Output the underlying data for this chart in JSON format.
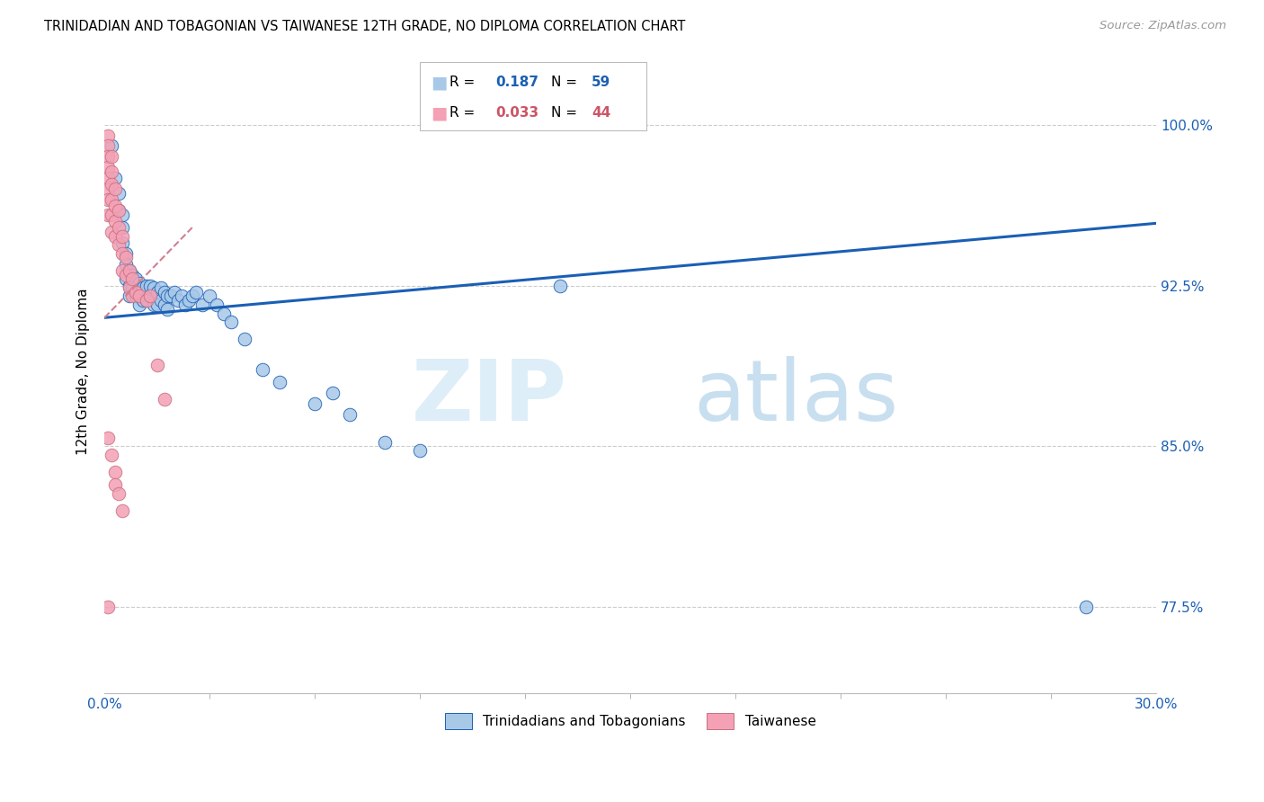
{
  "title": "TRINIDADIAN AND TOBAGONIAN VS TAIWANESE 12TH GRADE, NO DIPLOMA CORRELATION CHART",
  "source": "Source: ZipAtlas.com",
  "ylabel": "12th Grade, No Diploma",
  "ytick_labels": [
    "77.5%",
    "85.0%",
    "92.5%",
    "100.0%"
  ],
  "ytick_values": [
    0.775,
    0.85,
    0.925,
    1.0
  ],
  "xlim": [
    0.0,
    0.3
  ],
  "ylim": [
    0.735,
    1.035
  ],
  "color_blue": "#a8c8e8",
  "color_pink": "#f4a0b5",
  "trendline1_color": "#1a5fb4",
  "trendline2_color": "#d08090",
  "blue_points_x": [
    0.002,
    0.003,
    0.004,
    0.004,
    0.005,
    0.005,
    0.005,
    0.006,
    0.006,
    0.006,
    0.007,
    0.007,
    0.007,
    0.008,
    0.008,
    0.009,
    0.009,
    0.01,
    0.01,
    0.01,
    0.011,
    0.011,
    0.012,
    0.012,
    0.013,
    0.013,
    0.014,
    0.014,
    0.015,
    0.015,
    0.016,
    0.016,
    0.017,
    0.017,
    0.018,
    0.018,
    0.019,
    0.02,
    0.021,
    0.022,
    0.023,
    0.024,
    0.025,
    0.026,
    0.028,
    0.03,
    0.032,
    0.034,
    0.036,
    0.04,
    0.045,
    0.05,
    0.06,
    0.065,
    0.07,
    0.08,
    0.09,
    0.13,
    0.28
  ],
  "blue_points_y": [
    0.99,
    0.975,
    0.968,
    0.96,
    0.958,
    0.952,
    0.945,
    0.94,
    0.935,
    0.928,
    0.932,
    0.925,
    0.92,
    0.93,
    0.924,
    0.928,
    0.92,
    0.926,
    0.922,
    0.916,
    0.924,
    0.918,
    0.925,
    0.918,
    0.925,
    0.92,
    0.924,
    0.916,
    0.922,
    0.916,
    0.924,
    0.918,
    0.922,
    0.916,
    0.92,
    0.914,
    0.92,
    0.922,
    0.918,
    0.92,
    0.916,
    0.918,
    0.92,
    0.922,
    0.916,
    0.92,
    0.916,
    0.912,
    0.908,
    0.9,
    0.886,
    0.88,
    0.87,
    0.875,
    0.865,
    0.852,
    0.848,
    0.925,
    0.775
  ],
  "pink_points_x": [
    0.001,
    0.001,
    0.001,
    0.001,
    0.001,
    0.001,
    0.001,
    0.001,
    0.002,
    0.002,
    0.002,
    0.002,
    0.002,
    0.002,
    0.003,
    0.003,
    0.003,
    0.003,
    0.004,
    0.004,
    0.004,
    0.005,
    0.005,
    0.005,
    0.006,
    0.006,
    0.007,
    0.007,
    0.008,
    0.008,
    0.009,
    0.01,
    0.012,
    0.013,
    0.015,
    0.017,
    0.001,
    0.002,
    0.003,
    0.003,
    0.004,
    0.005,
    0.001
  ],
  "pink_points_y": [
    0.995,
    0.99,
    0.985,
    0.98,
    0.975,
    0.97,
    0.965,
    0.958,
    0.985,
    0.978,
    0.972,
    0.965,
    0.958,
    0.95,
    0.97,
    0.962,
    0.955,
    0.948,
    0.96,
    0.952,
    0.944,
    0.948,
    0.94,
    0.932,
    0.938,
    0.93,
    0.932,
    0.924,
    0.928,
    0.92,
    0.922,
    0.92,
    0.918,
    0.92,
    0.888,
    0.872,
    0.854,
    0.846,
    0.838,
    0.832,
    0.828,
    0.82,
    0.775
  ],
  "trendline_blue_x0": 0.0,
  "trendline_blue_y0": 0.91,
  "trendline_blue_x1": 0.3,
  "trendline_blue_y1": 0.954,
  "trendline_pink_x0": 0.0,
  "trendline_pink_y0": 0.91,
  "trendline_pink_x1": 0.025,
  "trendline_pink_y1": 0.952
}
